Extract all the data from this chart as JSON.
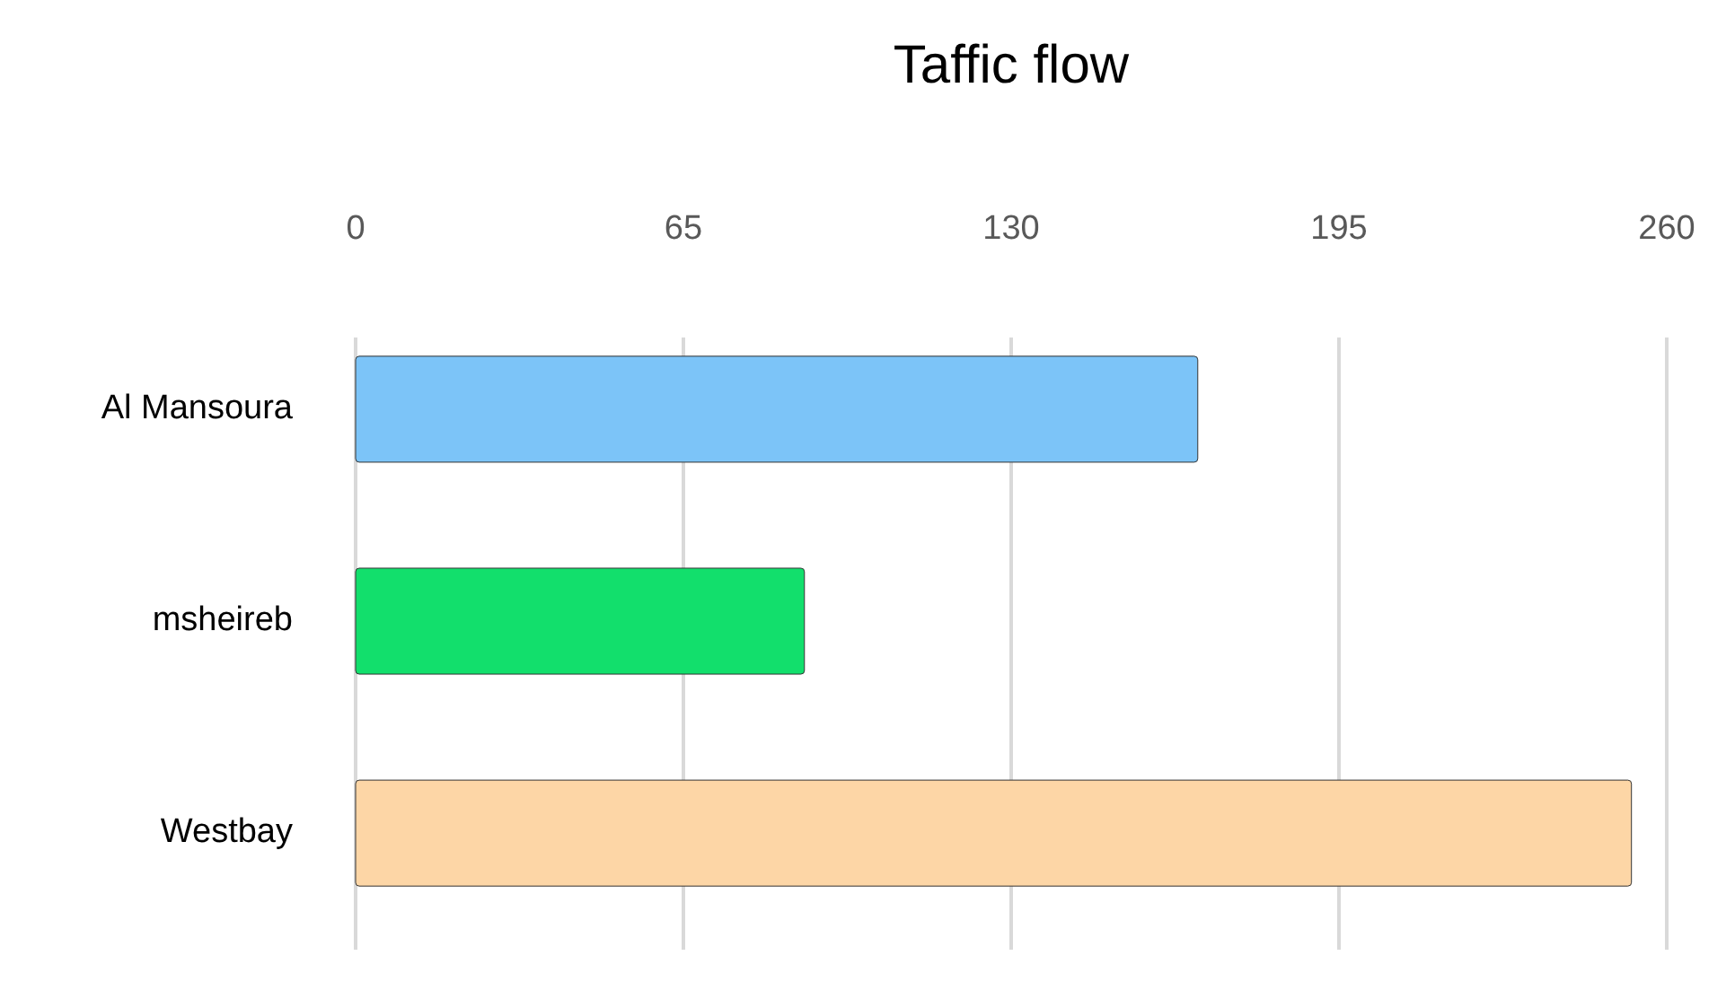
{
  "chart_data": {
    "type": "bar",
    "orientation": "horizontal",
    "title": "Taffic flow",
    "categories": [
      "Al Mansoura",
      "msheireb",
      "Westbay"
    ],
    "values": [
      167,
      89,
      253
    ],
    "colors": [
      "#7cc4f8",
      "#12df6c",
      "#fdd6a6"
    ],
    "xlim": [
      0,
      260
    ],
    "xticks": [
      0,
      65,
      130,
      195,
      260
    ],
    "grid": "x"
  }
}
